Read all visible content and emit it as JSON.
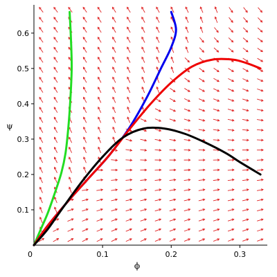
{
  "chart_data": {
    "type": "line",
    "title": "",
    "xlabel": "ϕ",
    "ylabel": "ψ",
    "xlim": [
      0,
      0.34
    ],
    "ylim": [
      0,
      0.68
    ],
    "x_ticks": [
      {
        "value": 0.1,
        "label": "0.1"
      },
      {
        "value": 0.2,
        "label": "0.2"
      },
      {
        "value": 0.3,
        "label": "0.3"
      }
    ],
    "y_ticks": [
      {
        "value": 0.1,
        "label": "0.1"
      },
      {
        "value": 0.2,
        "label": "0.2"
      },
      {
        "value": 0.3,
        "label": "0.3"
      },
      {
        "value": 0.4,
        "label": "0.4"
      },
      {
        "value": 0.5,
        "label": "0.5"
      },
      {
        "value": 0.6,
        "label": "0.6"
      }
    ],
    "origin_label": "0",
    "grid": false,
    "legend": "none",
    "vector_field_color": "#e02020",
    "series": [
      {
        "color": "#22dd22",
        "points": [
          [
            0,
            0
          ],
          [
            0.01,
            0.045
          ],
          [
            0.02,
            0.09
          ],
          [
            0.03,
            0.145
          ],
          [
            0.04,
            0.205
          ],
          [
            0.046,
            0.26
          ],
          [
            0.05,
            0.33
          ],
          [
            0.053,
            0.41
          ],
          [
            0.055,
            0.5
          ],
          [
            0.054,
            0.58
          ],
          [
            0.052,
            0.66
          ]
        ]
      },
      {
        "color": "#0000ee",
        "points": [
          [
            0,
            0
          ],
          [
            0.02,
            0.055
          ],
          [
            0.05,
            0.125
          ],
          [
            0.08,
            0.19
          ],
          [
            0.11,
            0.255
          ],
          [
            0.14,
            0.335
          ],
          [
            0.165,
            0.42
          ],
          [
            0.185,
            0.5
          ],
          [
            0.2,
            0.56
          ],
          [
            0.207,
            0.61
          ],
          [
            0.2,
            0.66
          ]
        ]
      },
      {
        "color": "#ee0000",
        "points": [
          [
            0,
            0
          ],
          [
            0.02,
            0.055
          ],
          [
            0.05,
            0.125
          ],
          [
            0.08,
            0.19
          ],
          [
            0.11,
            0.255
          ],
          [
            0.14,
            0.33
          ],
          [
            0.17,
            0.4
          ],
          [
            0.2,
            0.46
          ],
          [
            0.23,
            0.505
          ],
          [
            0.26,
            0.525
          ],
          [
            0.29,
            0.525
          ],
          [
            0.31,
            0.515
          ],
          [
            0.33,
            0.5
          ]
        ]
      },
      {
        "color": "#000000",
        "points": [
          [
            0,
            0
          ],
          [
            0.02,
            0.045
          ],
          [
            0.04,
            0.1
          ],
          [
            0.07,
            0.18
          ],
          [
            0.1,
            0.25
          ],
          [
            0.13,
            0.305
          ],
          [
            0.16,
            0.33
          ],
          [
            0.19,
            0.33
          ],
          [
            0.22,
            0.315
          ],
          [
            0.25,
            0.29
          ],
          [
            0.28,
            0.26
          ],
          [
            0.3,
            0.235
          ],
          [
            0.33,
            0.2
          ]
        ]
      }
    ]
  }
}
